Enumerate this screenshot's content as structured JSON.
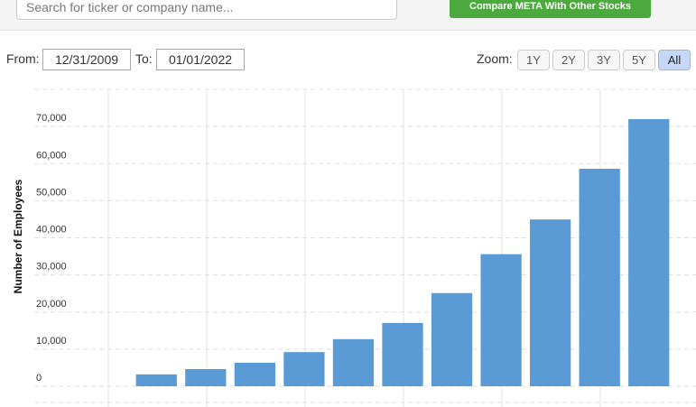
{
  "ui": {
    "search_placeholder": "Search for ticker or company name...",
    "compare_button": "Compare META With Other Stocks",
    "from_label": "From:",
    "from_value": "12/31/2009",
    "to_label": "To:",
    "to_value": "01/01/2022",
    "zoom_label": "Zoom:",
    "zoom_options": [
      "1Y",
      "2Y",
      "3Y",
      "5Y",
      "All"
    ]
  },
  "chart_data": {
    "type": "bar",
    "y_label": "Number of Employees",
    "categories": [
      null,
      null,
      null,
      null,
      null,
      null,
      null,
      null,
      null,
      null,
      null
    ],
    "values": [
      3200,
      4619,
      6337,
      9199,
      12691,
      17048,
      25105,
      35587,
      44942,
      58604,
      71970
    ],
    "color": "#5b9bd5",
    "ylim": [
      0,
      80000
    ],
    "yticks": [
      0,
      {
        "value": 10000,
        "label": "10,000"
      },
      {
        "value": 20000,
        "label": "20,000"
      },
      {
        "value": 30000,
        "label": "30,000"
      },
      {
        "value": 40000,
        "label": "40,000"
      },
      {
        "value": 50000,
        "label": "50,000"
      },
      {
        "value": 60000,
        "label": "60,000"
      },
      {
        "value": 70000,
        "label": "70,000"
      }
    ],
    "grid": true
  }
}
